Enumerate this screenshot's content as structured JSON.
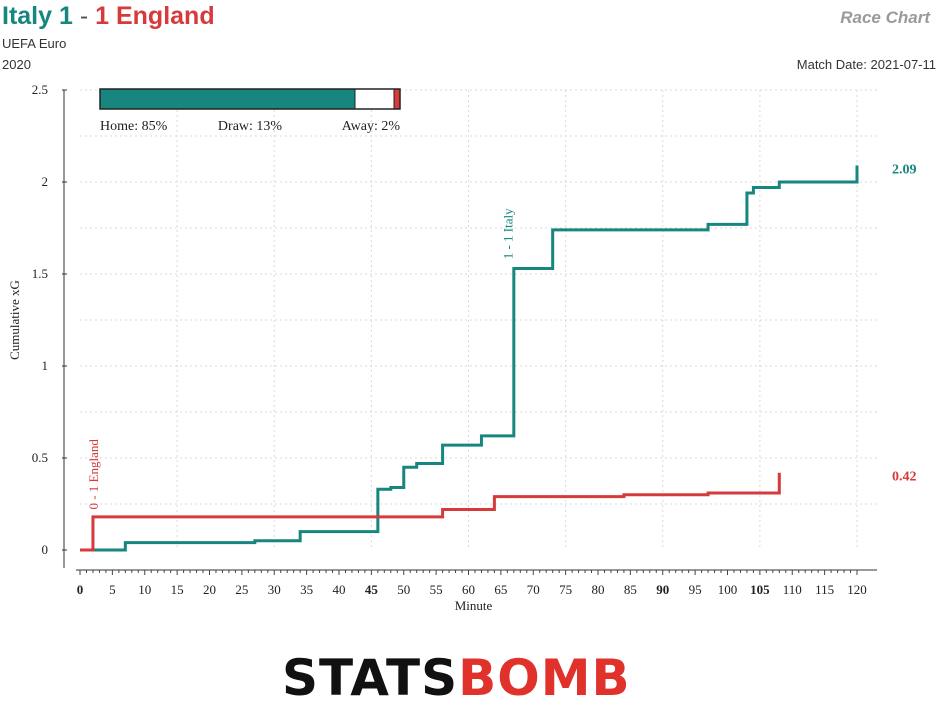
{
  "header": {
    "home_team": "Italy",
    "home_score": "1",
    "separator": "-",
    "away_score": "1",
    "away_team": "England",
    "competition": "UEFA Euro",
    "season": "2020",
    "chart_label": "Race Chart",
    "match_date": "Match Date: 2021-07-11"
  },
  "colors": {
    "home": "#17867f",
    "away": "#d63a3a",
    "grid": "#d9d9d9"
  },
  "win_probability": {
    "home": 0.85,
    "draw": 0.13,
    "away": 0.02,
    "home_label": "Home: 85%",
    "draw_label": "Draw: 13%",
    "away_label": "Away: 2%"
  },
  "logo": {
    "part1": "STATS",
    "part2": "BOMB"
  },
  "chart_data": {
    "type": "line",
    "step": true,
    "xlabel": "Minute",
    "ylabel": "Cumulative xG",
    "xlim": [
      0,
      120
    ],
    "ylim": [
      0,
      2.5
    ],
    "x_ticks": [
      0,
      5,
      10,
      15,
      20,
      25,
      30,
      35,
      40,
      45,
      50,
      55,
      60,
      65,
      70,
      75,
      80,
      85,
      90,
      95,
      100,
      105,
      110,
      115,
      120
    ],
    "x_ticks_bold": [
      0,
      45,
      90,
      105
    ],
    "y_ticks": [
      0,
      0.5,
      1,
      1.5,
      2,
      2.5
    ],
    "y_tick_labels": [
      "0",
      "0.5",
      "1",
      "1.5",
      "2",
      "2.5"
    ],
    "grid": true,
    "series": [
      {
        "name": "Italy",
        "color": "#17867f",
        "final_label": "2.09",
        "points": [
          [
            0,
            0
          ],
          [
            7,
            0.04
          ],
          [
            27,
            0.05
          ],
          [
            34,
            0.1
          ],
          [
            46,
            0.33
          ],
          [
            48,
            0.34
          ],
          [
            50,
            0.45
          ],
          [
            52,
            0.47
          ],
          [
            56,
            0.57
          ],
          [
            62,
            0.62
          ],
          [
            67,
            1.53
          ],
          [
            73,
            1.74
          ],
          [
            97,
            1.77
          ],
          [
            103,
            1.94
          ],
          [
            104,
            1.97
          ],
          [
            108,
            2.0
          ],
          [
            120,
            2.09
          ]
        ]
      },
      {
        "name": "England",
        "color": "#d63a3a",
        "final_label": "0.42",
        "points": [
          [
            0,
            0
          ],
          [
            2,
            0.18
          ],
          [
            56,
            0.22
          ],
          [
            64,
            0.29
          ],
          [
            84,
            0.3
          ],
          [
            97,
            0.31
          ],
          [
            108,
            0.32
          ],
          [
            108,
            0.42
          ]
        ]
      }
    ],
    "annotations": [
      {
        "text": "1 - 1 Italy",
        "x": 66,
        "y": 1.58,
        "color": "#17867f"
      },
      {
        "text": "0 - 1 England",
        "x": 2,
        "y": 0.22,
        "color": "#d63a3a"
      }
    ]
  }
}
